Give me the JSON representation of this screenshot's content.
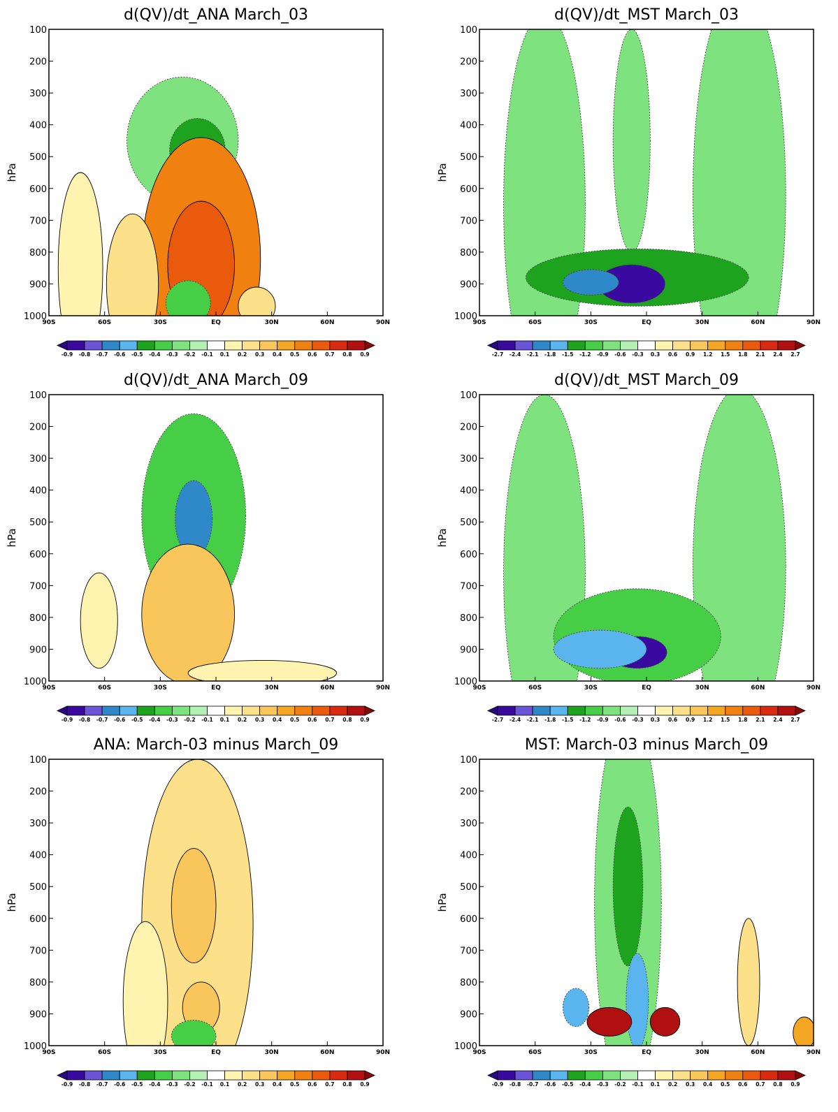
{
  "ylabel": "hPa",
  "colormap": [
    "#3a0aa0",
    "#6b55d6",
    "#2f88c8",
    "#5ab4ee",
    "#1da31d",
    "#46cf46",
    "#7ee37e",
    "#b4f0b4",
    "#ffffff",
    "#fff3b0",
    "#fde08a",
    "#f8c65a",
    "#f5a623",
    "#f08010",
    "#ea5a0c",
    "#d82a10",
    "#b01010"
  ],
  "chart_data": [
    {
      "type": "heatmap",
      "title": "d(QV)/dt_ANA     March_03",
      "xlabel": "",
      "ylabel": "hPa",
      "x_ticks": [
        "90S",
        "60S",
        "30S",
        "EQ",
        "30N",
        "60N",
        "90N"
      ],
      "y_ticks": [
        "100",
        "200",
        "300",
        "400",
        "500",
        "600",
        "700",
        "800",
        "900",
        "1000"
      ],
      "xlim": [
        -90,
        90
      ],
      "ylim": [
        1000,
        100
      ],
      "colorbar_labels": [
        "-0.9",
        "-0.8",
        "-0.7",
        "-0.6",
        "-0.5",
        "-0.4",
        "-0.3",
        "-0.2",
        "-0.1",
        "0.1",
        "0.2",
        "0.3",
        "0.4",
        "0.5",
        "0.6",
        "0.7",
        "0.8",
        "0.9"
      ],
      "features": [
        {
          "lat": -18,
          "lev": 450,
          "value": -0.2,
          "w": 30,
          "h": 200
        },
        {
          "lat": -10,
          "lev": 480,
          "value": -0.4,
          "w": 15,
          "h": 100
        },
        {
          "lat": -8,
          "lev": 820,
          "value": 0.5,
          "w": 32,
          "h": 380
        },
        {
          "lat": -8,
          "lev": 840,
          "value": 0.6,
          "w": 18,
          "h": 200
        },
        {
          "lat": -73,
          "lev": 850,
          "value": 0.1,
          "w": 12,
          "h": 300
        },
        {
          "lat": -45,
          "lev": 900,
          "value": 0.2,
          "w": 14,
          "h": 220
        },
        {
          "lat": 22,
          "lev": 970,
          "value": 0.2,
          "w": 10,
          "h": 60
        },
        {
          "lat": -15,
          "lev": 960,
          "value": -0.3,
          "w": 12,
          "h": 70
        }
      ]
    },
    {
      "type": "heatmap",
      "title": "d(QV)/dt_MST     March_03",
      "xlabel": "",
      "ylabel": "hPa",
      "x_ticks": [
        "90S",
        "60S",
        "30S",
        "EQ",
        "30N",
        "60N",
        "90N"
      ],
      "y_ticks": [
        "100",
        "200",
        "300",
        "400",
        "500",
        "600",
        "700",
        "800",
        "900",
        "1000"
      ],
      "xlim": [
        -90,
        90
      ],
      "ylim": [
        1000,
        100
      ],
      "colorbar_labels": [
        "-2.7",
        "-2.4",
        "-2.1",
        "-1.8",
        "-1.5",
        "-1.2",
        "-0.9",
        "-0.6",
        "-0.3",
        "0.3",
        "0.6",
        "0.9",
        "1.2",
        "1.5",
        "1.8",
        "2.1",
        "2.4",
        "2.7"
      ],
      "features": [
        {
          "lat": -55,
          "lev": 650,
          "value": -0.6,
          "w": 22,
          "h": 600
        },
        {
          "lat": 50,
          "lev": 620,
          "value": -0.6,
          "w": 25,
          "h": 650
        },
        {
          "lat": -8,
          "lev": 450,
          "value": -0.6,
          "w": 10,
          "h": 350
        },
        {
          "lat": -5,
          "lev": 880,
          "value": -1.2,
          "w": 60,
          "h": 90
        },
        {
          "lat": -8,
          "lev": 900,
          "value": -2.4,
          "w": 18,
          "h": 60
        },
        {
          "lat": -30,
          "lev": 895,
          "value": -1.8,
          "w": 15,
          "h": 40
        }
      ]
    },
    {
      "type": "heatmap",
      "title": "d(QV)/dt_ANA     March_09",
      "xlabel": "",
      "ylabel": "hPa",
      "x_ticks": [
        "90S",
        "60S",
        "30S",
        "EQ",
        "30N",
        "60N",
        "90N"
      ],
      "y_ticks": [
        "100",
        "200",
        "300",
        "400",
        "500",
        "600",
        "700",
        "800",
        "900",
        "1000"
      ],
      "xlim": [
        -90,
        90
      ],
      "ylim": [
        1000,
        100
      ],
      "colorbar_labels": [
        "-0.9",
        "-0.8",
        "-0.7",
        "-0.6",
        "-0.5",
        "-0.4",
        "-0.3",
        "-0.2",
        "-0.1",
        "0.1",
        "0.2",
        "0.3",
        "0.4",
        "0.5",
        "0.6",
        "0.7",
        "0.8",
        "0.9"
      ],
      "features": [
        {
          "lat": -12,
          "lev": 480,
          "value": -0.3,
          "w": 28,
          "h": 320
        },
        {
          "lat": -12,
          "lev": 490,
          "value": -0.6,
          "w": 10,
          "h": 120
        },
        {
          "lat": -15,
          "lev": 790,
          "value": 0.3,
          "w": 25,
          "h": 220
        },
        {
          "lat": -63,
          "lev": 810,
          "value": 0.1,
          "w": 10,
          "h": 150
        },
        {
          "lat": 25,
          "lev": 975,
          "value": 0.1,
          "w": 40,
          "h": 40
        }
      ]
    },
    {
      "type": "heatmap",
      "title": "d(QV)/dt_MST     March_09",
      "xlabel": "",
      "ylabel": "hPa",
      "x_ticks": [
        "90S",
        "60S",
        "30S",
        "EQ",
        "30N",
        "60N",
        "90N"
      ],
      "y_ticks": [
        "100",
        "200",
        "300",
        "400",
        "500",
        "600",
        "700",
        "800",
        "900",
        "1000"
      ],
      "xlim": [
        -90,
        90
      ],
      "ylim": [
        1000,
        100
      ],
      "colorbar_labels": [
        "-2.7",
        "-2.4",
        "-2.1",
        "-1.8",
        "-1.5",
        "-1.2",
        "-0.9",
        "-0.6",
        "-0.3",
        "0.3",
        "0.6",
        "0.9",
        "1.2",
        "1.5",
        "1.8",
        "2.1",
        "2.4",
        "2.7"
      ],
      "features": [
        {
          "lat": -55,
          "lev": 660,
          "value": -0.6,
          "w": 22,
          "h": 560
        },
        {
          "lat": 50,
          "lev": 640,
          "value": -0.6,
          "w": 25,
          "h": 560
        },
        {
          "lat": -5,
          "lev": 860,
          "value": -0.9,
          "w": 45,
          "h": 150
        },
        {
          "lat": -5,
          "lev": 910,
          "value": -2.4,
          "w": 16,
          "h": 50
        },
        {
          "lat": -25,
          "lev": 900,
          "value": -1.5,
          "w": 25,
          "h": 60
        }
      ]
    },
    {
      "type": "heatmap",
      "title": "ANA: March-03 minus March_09",
      "xlabel": "",
      "ylabel": "hPa",
      "x_ticks": [
        "90S",
        "60S",
        "30S",
        "EQ",
        "30N",
        "60N",
        "90N"
      ],
      "y_ticks": [
        "100",
        "200",
        "300",
        "400",
        "500",
        "600",
        "700",
        "800",
        "900",
        "1000"
      ],
      "xlim": [
        -90,
        90
      ],
      "ylim": [
        1000,
        100
      ],
      "colorbar_labels": [
        "-0.9",
        "-0.8",
        "-0.7",
        "-0.6",
        "-0.5",
        "-0.4",
        "-0.3",
        "-0.2",
        "-0.1",
        "0.1",
        "0.2",
        "0.3",
        "0.4",
        "0.5",
        "0.6",
        "0.7",
        "0.8",
        "0.9"
      ],
      "features": [
        {
          "lat": -10,
          "lev": 620,
          "value": 0.2,
          "w": 30,
          "h": 520
        },
        {
          "lat": -12,
          "lev": 560,
          "value": 0.3,
          "w": 12,
          "h": 180
        },
        {
          "lat": -8,
          "lev": 880,
          "value": 0.3,
          "w": 10,
          "h": 80
        },
        {
          "lat": -38,
          "lev": 860,
          "value": 0.1,
          "w": 12,
          "h": 250
        },
        {
          "lat": -12,
          "lev": 970,
          "value": -0.3,
          "w": 12,
          "h": 50
        }
      ]
    },
    {
      "type": "heatmap",
      "title": "MST: March-03 minus March_09",
      "xlabel": "",
      "ylabel": "hPa",
      "x_ticks": [
        "90S",
        "60S",
        "30S",
        "EQ",
        "30N",
        "60N",
        "90N"
      ],
      "y_ticks": [
        "100",
        "200",
        "300",
        "400",
        "500",
        "600",
        "700",
        "800",
        "900",
        "1000"
      ],
      "xlim": [
        -90,
        90
      ],
      "ylim": [
        1000,
        100
      ],
      "colorbar_labels": [
        "-0.9",
        "-0.8",
        "-0.7",
        "-0.6",
        "-0.5",
        "-0.4",
        "-0.3",
        "-0.2",
        "-0.1",
        "0.1",
        "0.2",
        "0.3",
        "0.4",
        "0.5",
        "0.6",
        "0.7",
        "0.8",
        "0.9"
      ],
      "features": [
        {
          "lat": -10,
          "lev": 550,
          "value": -0.2,
          "w": 18,
          "h": 600
        },
        {
          "lat": -10,
          "lev": 500,
          "value": -0.4,
          "w": 8,
          "h": 250
        },
        {
          "lat": -5,
          "lev": 860,
          "value": -0.5,
          "w": 6,
          "h": 150
        },
        {
          "lat": -20,
          "lev": 925,
          "value": 0.8,
          "w": 12,
          "h": 45
        },
        {
          "lat": 10,
          "lev": 925,
          "value": 0.8,
          "w": 8,
          "h": 45
        },
        {
          "lat": -38,
          "lev": 880,
          "value": -0.5,
          "w": 7,
          "h": 60
        },
        {
          "lat": 55,
          "lev": 800,
          "value": 0.2,
          "w": 6,
          "h": 200
        },
        {
          "lat": 85,
          "lev": 960,
          "value": 0.4,
          "w": 6,
          "h": 50
        }
      ]
    }
  ]
}
